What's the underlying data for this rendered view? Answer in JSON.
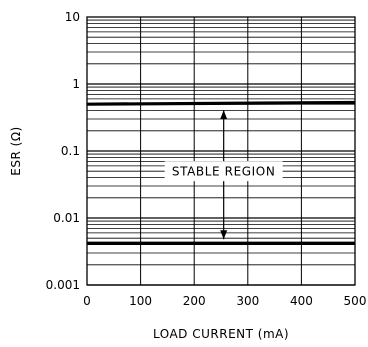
{
  "chart_data": {
    "type": "line",
    "title": "",
    "xlabel": "LOAD CURRENT (mA)",
    "ylabel": "ESR (Ω)",
    "xlim": [
      0,
      500
    ],
    "ylim": [
      0.001,
      10
    ],
    "yscale": "log",
    "grid": true,
    "x_ticks": [
      0,
      100,
      200,
      300,
      400,
      500
    ],
    "x_tick_labels": [
      "0",
      "100",
      "200",
      "300",
      "400",
      "500"
    ],
    "y_ticks": [
      0.001,
      0.01,
      0.1,
      1,
      10
    ],
    "y_tick_labels": [
      "0.001",
      "0.01",
      "0.1",
      "1",
      "10"
    ],
    "series": [
      {
        "x": [
          0,
          500
        ],
        "values": [
          0.5,
          0.53
        ]
      },
      {
        "x": [
          0,
          500
        ],
        "values": [
          0.0042,
          0.0042
        ]
      }
    ],
    "annotation": {
      "text": "STABLE REGION",
      "x": 255,
      "y": 0.05,
      "arrow_up_to": 0.5,
      "arrow_down_to": 0.0042
    }
  }
}
